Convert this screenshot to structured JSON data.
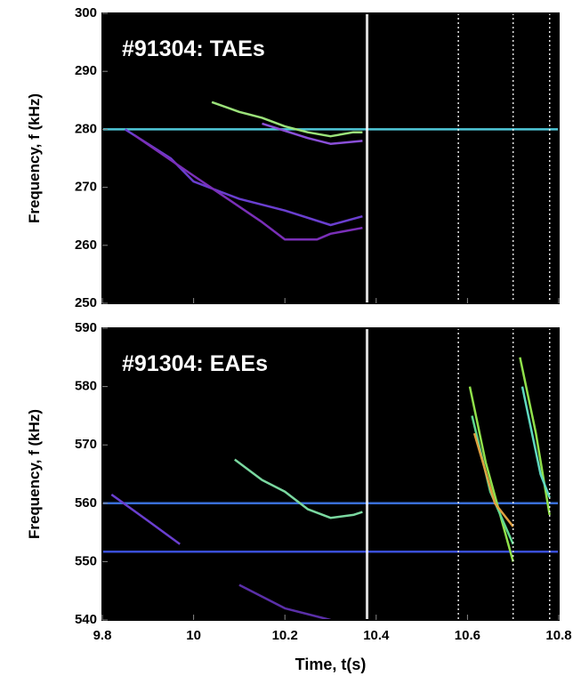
{
  "chart_data": [
    {
      "type": "spectrogram",
      "annotation": "#91304: TAEs",
      "ylabel": "Frequency, f (kHz)",
      "xlim": [
        9.8,
        10.8
      ],
      "xticks": [
        9.8,
        10.0,
        10.2,
        10.4,
        10.6,
        10.8
      ],
      "ylim": [
        250,
        300
      ],
      "yticks": [
        250,
        260,
        270,
        280,
        290,
        300
      ],
      "vlines": [
        10.38,
        10.58,
        10.7,
        10.78
      ],
      "vline_color": "#ffffff",
      "series": [
        {
          "color": "#4fc8d8",
          "x": [
            9.8,
            10.8
          ],
          "values": [
            280,
            280
          ]
        },
        {
          "color": "#6a3fd0",
          "x": [
            9.85,
            9.95,
            10.0,
            10.1,
            10.2,
            10.3,
            10.37
          ],
          "values": [
            280,
            275,
            271,
            268,
            266,
            263.5,
            265
          ]
        },
        {
          "color": "#7a2fb8",
          "x": [
            9.87,
            10.0,
            10.15,
            10.2,
            10.27,
            10.3,
            10.37
          ],
          "values": [
            279,
            272,
            264,
            261,
            261,
            262,
            263
          ]
        },
        {
          "color": "#8a4fd8",
          "x": [
            10.15,
            10.25,
            10.3,
            10.37
          ],
          "values": [
            281,
            278.5,
            277.5,
            278
          ]
        },
        {
          "color": "#9be27a",
          "x": [
            10.04,
            10.1,
            10.15,
            10.2,
            10.25,
            10.3,
            10.35,
            10.37
          ],
          "values": [
            284.7,
            283,
            282,
            280.5,
            279.5,
            278.8,
            279.5,
            279.5
          ]
        }
      ]
    },
    {
      "type": "spectrogram",
      "annotation": "#91304: EAEs",
      "ylabel": "Frequency, f (kHz)",
      "xlabel": "Time, t(s)",
      "xlim": [
        9.8,
        10.8
      ],
      "xticks": [
        9.8,
        10.0,
        10.2,
        10.4,
        10.6,
        10.8
      ],
      "ylim": [
        540,
        590
      ],
      "yticks": [
        540,
        550,
        560,
        570,
        580,
        590
      ],
      "vlines": [
        10.38,
        10.58,
        10.7,
        10.78
      ],
      "vline_color": "#ffffff",
      "series": [
        {
          "color": "#3a6fd8",
          "x": [
            9.8,
            10.8
          ],
          "values": [
            560,
            560
          ]
        },
        {
          "color": "#3a4fd8",
          "x": [
            9.8,
            10.8
          ],
          "values": [
            551.7,
            551.7
          ]
        },
        {
          "color": "#6a3fd0",
          "x": [
            9.82,
            9.9,
            9.97
          ],
          "values": [
            561.5,
            557,
            553
          ]
        },
        {
          "color": "#5a2fa8",
          "x": [
            10.1,
            10.2,
            10.3
          ],
          "values": [
            546,
            542,
            540
          ]
        },
        {
          "color": "#7ad8a0",
          "x": [
            10.09,
            10.15,
            10.2,
            10.25,
            10.3,
            10.35,
            10.37
          ],
          "values": [
            567.5,
            564,
            562,
            559,
            557.5,
            558,
            558.5
          ]
        },
        {
          "color": "#8fe04a",
          "x": [
            10.605,
            10.64,
            10.7
          ],
          "values": [
            580,
            567,
            550
          ]
        },
        {
          "color": "#5fd890",
          "x": [
            10.61,
            10.65,
            10.7
          ],
          "values": [
            575,
            562,
            553
          ]
        },
        {
          "color": "#e0a040",
          "x": [
            10.615,
            10.66,
            10.7
          ],
          "values": [
            572,
            560,
            556
          ]
        },
        {
          "color": "#8fe04a",
          "x": [
            10.715,
            10.75,
            10.78
          ],
          "values": [
            585,
            572,
            558
          ]
        },
        {
          "color": "#5fd8c0",
          "x": [
            10.72,
            10.76,
            10.78
          ],
          "values": [
            580,
            565,
            561
          ]
        }
      ]
    }
  ]
}
